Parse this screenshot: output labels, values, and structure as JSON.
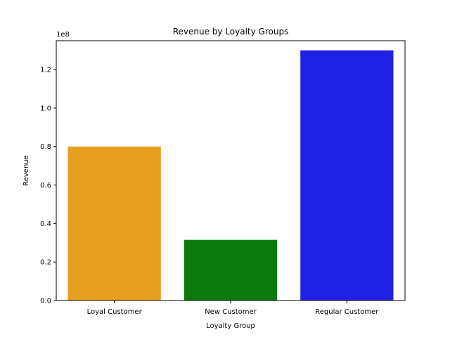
{
  "chart_data": {
    "type": "bar",
    "title": "Revenue by Loyalty Groups",
    "xlabel": "Loyalty Group",
    "ylabel": "Revenue",
    "offset_label": "1e8",
    "categories": [
      "Loyal Customer",
      "New Customer",
      "Regular Customer"
    ],
    "values": [
      80000000,
      31500000,
      130000000
    ],
    "colors": [
      "#e69f1f",
      "#0b7a0b",
      "#2121e6"
    ],
    "ylim": [
      0,
      135000000
    ],
    "yticks": [
      0,
      20000000,
      40000000,
      60000000,
      80000000,
      100000000,
      120000000
    ],
    "ytick_labels": [
      "0.0",
      "0.2",
      "0.4",
      "0.6",
      "0.8",
      "1.0",
      "1.2"
    ],
    "grid": false,
    "legend": "none"
  }
}
